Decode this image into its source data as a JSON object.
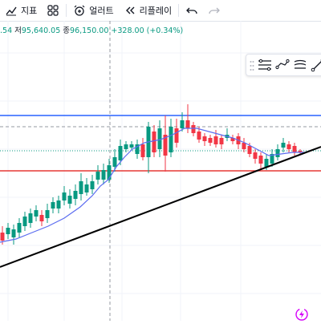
{
  "toolbar": {
    "indicators_label": "지표",
    "alert_label": "얼러트",
    "replay_label": "리플레이"
  },
  "ohlc": {
    "open_partial": ".54",
    "low_label": "저",
    "low_value": "95,640.05",
    "close_label": "종",
    "close_value": "96,150.00",
    "change": "+328.00 (+0.34%)"
  },
  "colors": {
    "up": "#089981",
    "down": "#f23645",
    "ma": "#5b6cf0",
    "blue_line": "#2962ff",
    "red_line": "#e53935",
    "trend_line": "#000000"
  },
  "icons": {
    "indicators": "indicators-icon",
    "layout": "layout-grid-icon",
    "alert": "alarm-clock-plus-icon",
    "replay": "rewind-icon",
    "undo": "undo-icon",
    "redo": "redo-icon"
  }
}
